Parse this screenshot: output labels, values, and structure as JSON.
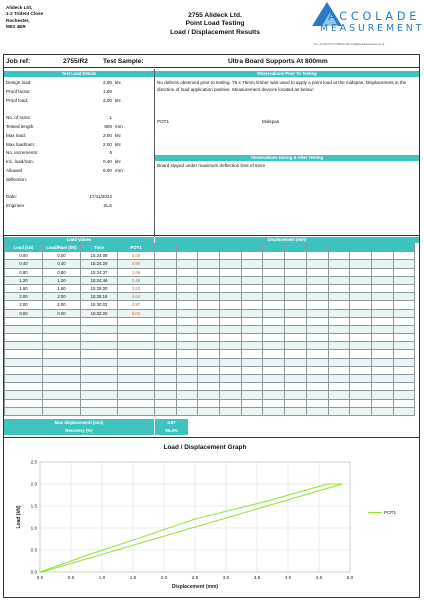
{
  "company": {
    "lines": [
      "Alideck Ltd,",
      "1-2 Trident Close",
      "Rochester,",
      "ME2 4ER"
    ]
  },
  "header": {
    "title_lines": [
      "2755 Alideck Ltd.",
      "Point Load Testing",
      "Load / Displacement Results"
    ]
  },
  "logo": {
    "word1": "ACCOLADE",
    "word2": "MEASUREMENT",
    "contact": "Tel: +44 (0)1707 277 888  E-mail: mail@accolademeasure.co.uk"
  },
  "job": {
    "label": "Job ref:",
    "ref": "2755/R2",
    "sample_label": "Test Sample:",
    "sample": "Ultra Board Supports At 800mm"
  },
  "test_load_details": {
    "heading": "Test Load Details",
    "rows": [
      {
        "k": "Design load:",
        "v": "2.00",
        "u": "kN"
      },
      {
        "k": "Proof factor:",
        "v": "1.00",
        "u": ""
      },
      {
        "k": "Proof load:",
        "v": "2.00",
        "u": "kN"
      },
      {
        "k": "",
        "v": "",
        "u": ""
      },
      {
        "k": "No. of rams:",
        "v": "1",
        "u": ""
      },
      {
        "k": "Tested length:",
        "v": "800",
        "u": "mm"
      },
      {
        "k": "Max load:",
        "v": "2.00",
        "u": "kN"
      },
      {
        "k": "Max load/ram:",
        "v": "2.00",
        "u": "kN"
      },
      {
        "k": "No. increments:",
        "v": "5",
        "u": ""
      },
      {
        "k": "Inc. load/ram:",
        "v": "0.40",
        "u": "kN"
      },
      {
        "k": "Allowed",
        "v": "5.00",
        "u": "mm"
      },
      {
        "k": "deflection:",
        "v": "",
        "u": ""
      },
      {
        "k": "",
        "v": "",
        "u": ""
      },
      {
        "k": "Date:",
        "v": "17/11/2022",
        "u": ""
      },
      {
        "k": "Engineer",
        "v": "SLS",
        "u": ""
      }
    ]
  },
  "observations_prior": {
    "heading": "Observations Prior To Testing",
    "text": "No defects observed prior to testing. 75 x 75mm timber was used to apply a point load at the midspan. Displacement in the direction of load application positive. Measurement devices located as below:",
    "device": "POT1",
    "location": "Midspan"
  },
  "observations_during": {
    "heading": "Observations During & After Testing",
    "text": "Board stayed under maximum deflection limit of 5mm"
  },
  "load_values": {
    "heading": "Load Values",
    "columns": [
      "Load (kN)",
      "Load/Ram (kN)",
      "Time",
      "POT1"
    ],
    "rows": [
      [
        "0.00",
        "0.00",
        "15:24:08",
        "0.00"
      ],
      [
        "0.40",
        "0.40",
        "15:24:29",
        "0.80"
      ],
      [
        "0.80",
        "0.80",
        "15:24:37",
        "1.66"
      ],
      [
        "1.20",
        "1.20",
        "15:24:46",
        "2.49"
      ],
      [
        "1.60",
        "1.60",
        "15:25:00",
        "3.63"
      ],
      [
        "2.00",
        "2.00",
        "15:25:18",
        "4.64"
      ],
      [
        "2.00",
        "2.00",
        "15:30:03",
        "4.87"
      ],
      [
        "0.00",
        "0.00",
        "15:32:20",
        "0.03"
      ]
    ],
    "empty_rows": 12
  },
  "displacement": {
    "heading": "Displacement (mm)"
  },
  "summary": {
    "max_label": "Max displacement (mm)",
    "max_value": "4.87",
    "recovery_label": "Recovery (%)",
    "recovery_value": "99.4%"
  },
  "colors": {
    "teal": "#3fc3c0",
    "orange": "#e06a1e",
    "series": "#8fe22f",
    "logo_blue": "#2a79c2"
  },
  "chart_data": {
    "type": "line",
    "title": "Load / Displacement Graph",
    "xlabel": "Displacement (mm)",
    "ylabel": "Load (kN)",
    "xlim": [
      0,
      5
    ],
    "ylim": [
      0,
      2.5
    ],
    "xticks": [
      "0.0",
      "0.5",
      "1.0",
      "1.5",
      "2.0",
      "2.5",
      "3.0",
      "3.5",
      "4.0",
      "4.5",
      "5.0"
    ],
    "yticks": [
      "0.0",
      "0.5",
      "1.0",
      "1.5",
      "2.0",
      "2.5"
    ],
    "grid": true,
    "legend": "right",
    "series": [
      {
        "name": "POT1",
        "x": [
          0.0,
          0.8,
          1.66,
          2.49,
          3.63,
          4.64,
          4.87,
          0.03
        ],
        "y": [
          0.0,
          0.4,
          0.8,
          1.2,
          1.6,
          2.0,
          2.0,
          0.0
        ]
      }
    ]
  }
}
